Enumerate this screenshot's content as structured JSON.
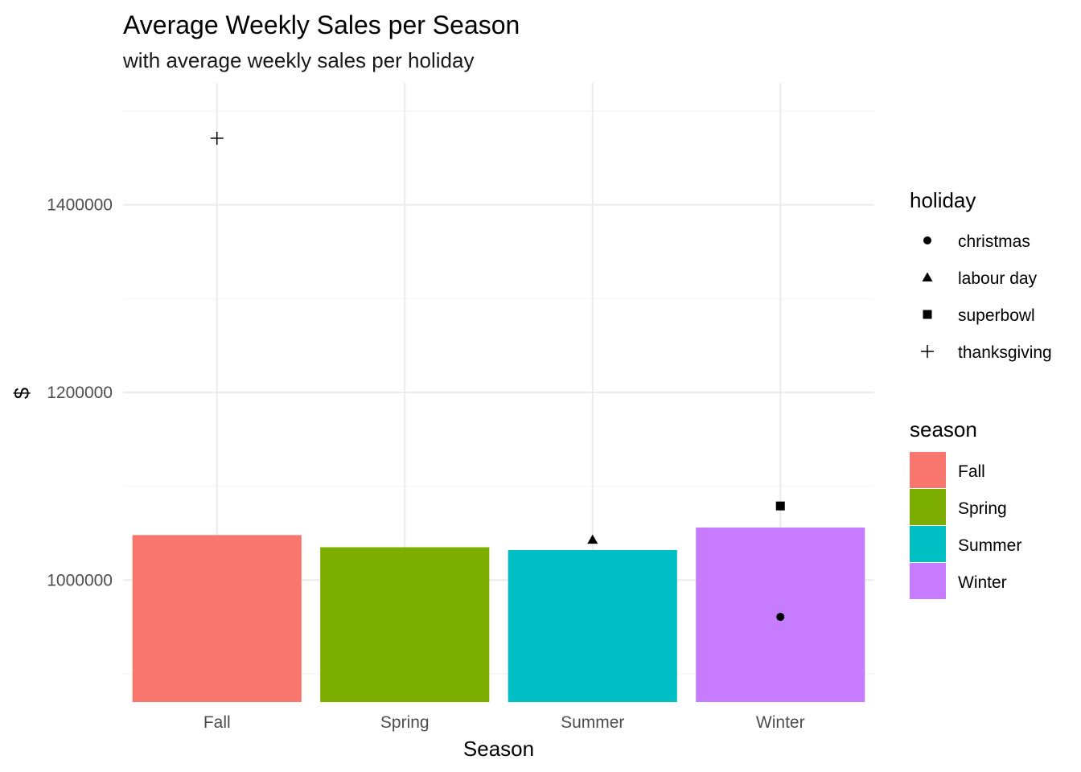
{
  "chart_data": {
    "type": "bar",
    "title": "Average Weekly Sales per Season",
    "subtitle": "with average weekly sales per holiday",
    "xlabel": "Season",
    "ylabel": "$",
    "categories": [
      "Fall",
      "Spring",
      "Summer",
      "Winter"
    ],
    "values": [
      1048000,
      1035000,
      1032000,
      1056000
    ],
    "bar_colors": [
      "#F8766D",
      "#7CAE00",
      "#00BFC4",
      "#C77CFF"
    ],
    "ylim": [
      870000,
      1530000
    ],
    "y_ticks": [
      1000000,
      1200000,
      1400000
    ],
    "y_tick_labels": [
      "1000000",
      "1200000",
      "1400000"
    ],
    "points": [
      {
        "category": "Fall",
        "holiday": "thanksgiving",
        "value": 1471000
      },
      {
        "category": "Summer",
        "holiday": "labour day",
        "value": 1043000
      },
      {
        "category": "Winter",
        "holiday": "superbowl",
        "value": 1079000
      },
      {
        "category": "Winter",
        "holiday": "christmas",
        "value": 960800
      }
    ],
    "grid": true,
    "legend_position": "right",
    "legends": [
      {
        "title": "holiday",
        "entries": [
          {
            "label": "christmas",
            "shape": "circle"
          },
          {
            "label": "labour day",
            "shape": "triangle"
          },
          {
            "label": "superbowl",
            "shape": "square"
          },
          {
            "label": "thanksgiving",
            "shape": "plus"
          }
        ]
      },
      {
        "title": "season",
        "entries": [
          {
            "label": "Fall",
            "color": "#F8766D"
          },
          {
            "label": "Spring",
            "color": "#7CAE00"
          },
          {
            "label": "Summer",
            "color": "#00BFC4"
          },
          {
            "label": "Winter",
            "color": "#C77CFF"
          }
        ]
      }
    ]
  }
}
